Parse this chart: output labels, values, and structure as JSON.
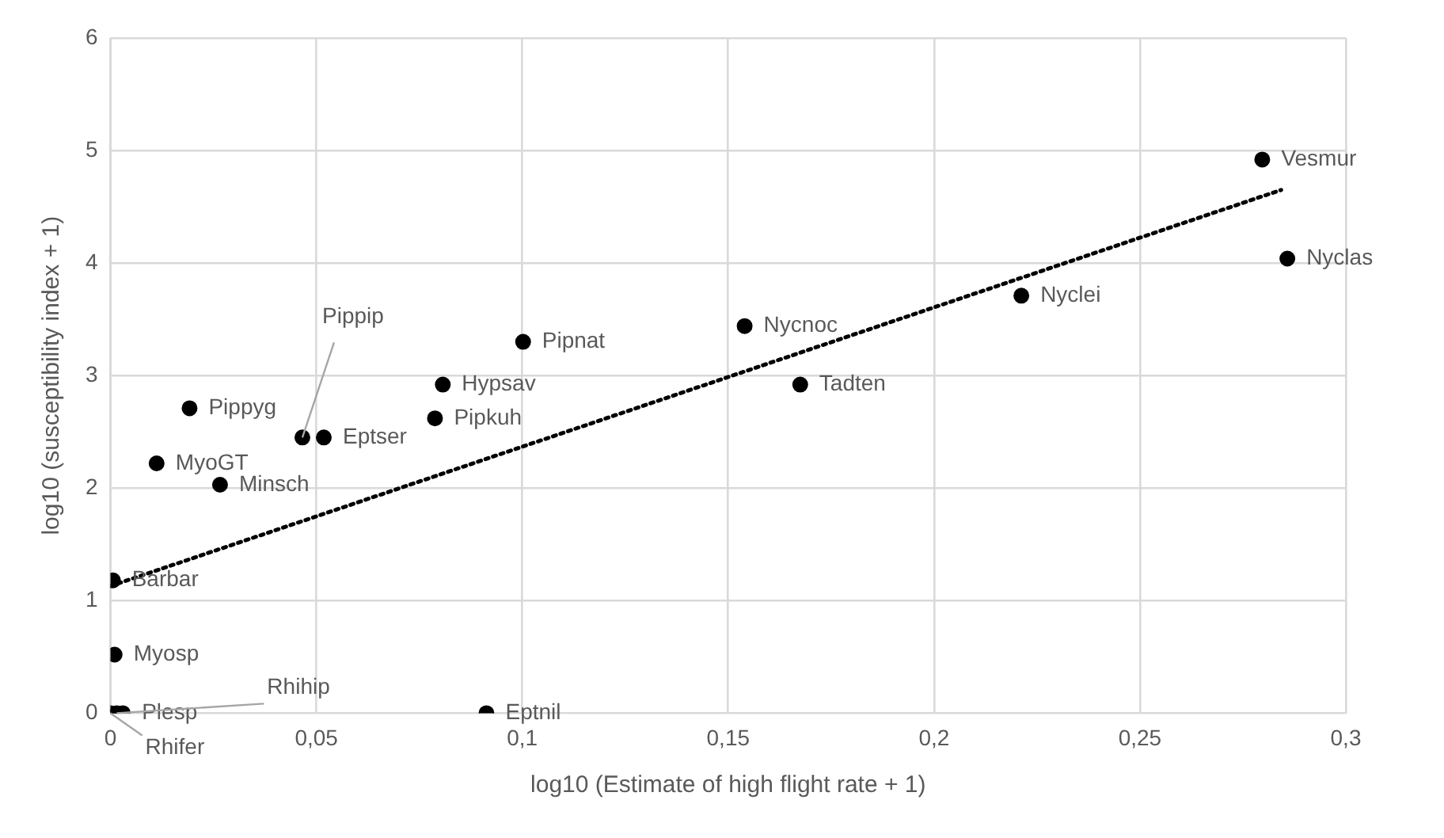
{
  "chart_data": {
    "type": "scatter",
    "xlabel": "log10 (Estimate of high flight rate + 1)",
    "ylabel": "log10 (susceptibility index + 1)",
    "xlim": [
      0,
      0.3
    ],
    "xticks": [
      0,
      {
        "value": 0.05,
        "label": "0,05"
      },
      {
        "value": 0.1,
        "label": "0,1"
      },
      {
        "value": 0.15,
        "label": "0,15"
      },
      {
        "value": 0.2,
        "label": "0,2"
      },
      {
        "value": 0.25,
        "label": "0,25"
      },
      {
        "value": 0.3,
        "label": "0,3"
      }
    ],
    "ylim": [
      0,
      6
    ],
    "yticks": [
      0,
      1,
      2,
      3,
      4,
      5,
      6
    ],
    "grid": true,
    "legend": false,
    "series": [
      {
        "type": "scatter",
        "color": "#000000",
        "marker": "circle",
        "x": [
          0.2797,
          0.2858,
          0.2212,
          0.154,
          0.1675,
          0.1002,
          0.0807,
          0.0788,
          0.0518,
          0.0466,
          0.0192,
          0.0112,
          0.0266,
          0.0006,
          0.001,
          0.003,
          0.0015,
          0,
          0.0913
        ],
        "values": [
          4.92,
          4.04,
          3.71,
          3.44,
          2.92,
          3.3,
          2.92,
          2.62,
          2.45,
          2.45,
          2.71,
          2.22,
          2.03,
          1.18,
          0.52,
          0,
          0,
          0,
          0
        ]
      },
      {
        "type": "line",
        "color": "#000000",
        "line_style": "dotted",
        "marker": "none",
        "x": [
          0,
          0.2843
        ],
        "values": [
          1.13,
          4.65
        ]
      }
    ],
    "annotations": [
      {
        "text": "Vesmur",
        "x": 0.2797,
        "y": 4.92
      },
      {
        "text": "Nyclas",
        "x": 0.2858,
        "y": 4.04
      },
      {
        "text": "Nyclei",
        "x": 0.2212,
        "y": 3.71
      },
      {
        "text": "Nycnoc",
        "x": 0.154,
        "y": 3.44
      },
      {
        "text": "Tadten",
        "x": 0.1675,
        "y": 2.92
      },
      {
        "text": "Pipnat",
        "x": 0.1002,
        "y": 3.3
      },
      {
        "text": "Hypsav",
        "x": 0.0807,
        "y": 2.92
      },
      {
        "text": "Pipkuh",
        "x": 0.0788,
        "y": 2.62
      },
      {
        "text": "Eptser",
        "x": 0.0518,
        "y": 2.45
      },
      {
        "text": "Pippip",
        "x": 0.0466,
        "y": 2.45
      },
      {
        "text": "Pippyg",
        "x": 0.0192,
        "y": 2.71
      },
      {
        "text": "MyoGT",
        "x": 0.0112,
        "y": 2.22
      },
      {
        "text": "Minsch",
        "x": 0.0266,
        "y": 2.03
      },
      {
        "text": "Barbar",
        "x": 0.0006,
        "y": 1.18
      },
      {
        "text": "Myosp",
        "x": 0.001,
        "y": 0.52
      },
      {
        "text": "Plesp",
        "x": 0.003,
        "y": 0
      },
      {
        "text": "Rhihip",
        "x": 0.0015,
        "y": 0
      },
      {
        "text": "Rhifer",
        "x": 0,
        "y": 0
      },
      {
        "text": "Eptnil",
        "x": 0.0913,
        "y": 0
      }
    ]
  }
}
